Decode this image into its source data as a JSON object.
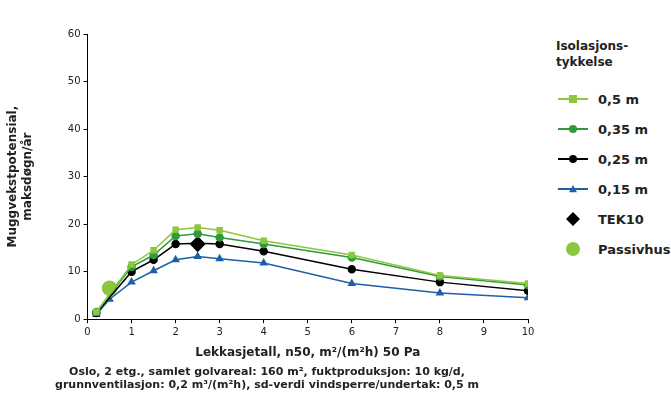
{
  "chart_data": {
    "type": "line",
    "x_label": "Lekkasjetall, n50, m²/(m²h) 50 Pa",
    "subtitle": [
      "Oslo, 2 etg., samlet golvareal: 160 m², fuktproduksjon: 10 kg/d,",
      "grunnventilasjon: 0,2 m³/(m²h), sd-verdi vindsperre/undertak: 0,5 m"
    ],
    "y_label": [
      "Muggvekstpotensial,",
      "maksdøgn/år"
    ],
    "legend_title": [
      "Isolasjons-",
      "tykkelse"
    ],
    "legend": "right",
    "grid": false,
    "xlim": [
      0,
      10
    ],
    "xticks": [
      0,
      1,
      2,
      3,
      4,
      5,
      6,
      7,
      8,
      9,
      10
    ],
    "ylim": [
      0,
      60
    ],
    "yticks": [
      0,
      10,
      20,
      30,
      40,
      50,
      60
    ],
    "series": [
      {
        "name": "0,5 m",
        "color": "#8dc63f",
        "marker": "square",
        "line_style": "solid",
        "x": [
          0.2,
          1,
          1.5,
          2,
          2.5,
          3,
          4,
          6,
          8,
          10
        ],
        "values": [
          1.5,
          11.5,
          14.5,
          18.8,
          19.3,
          18.7,
          16.5,
          13.5,
          9.2,
          7.5
        ]
      },
      {
        "name": "0,35 m",
        "color": "#2e9a3a",
        "marker": "circle",
        "line_style": "solid",
        "x": [
          0.2,
          1,
          1.5,
          2,
          2.5,
          3,
          4,
          6,
          8,
          10
        ],
        "values": [
          1.5,
          11,
          13.5,
          17.5,
          18,
          17.2,
          15.8,
          13,
          9,
          7.2
        ]
      },
      {
        "name": "0,25 m",
        "color": "#000000",
        "marker": "circle",
        "line_style": "solid",
        "x": [
          0.2,
          1,
          1.5,
          2,
          2.5,
          3,
          4,
          6,
          8,
          10
        ],
        "values": [
          1.3,
          10,
          12.5,
          15.8,
          16,
          15.8,
          14.3,
          10.5,
          7.8,
          6
        ]
      },
      {
        "name": "0,15 m",
        "color": "#1f5fa8",
        "marker": "triangle",
        "line_style": "solid",
        "x": [
          0.2,
          0.5,
          1,
          1.5,
          2,
          2.5,
          3,
          4,
          6,
          8,
          10
        ],
        "values": [
          1,
          4.2,
          7.8,
          10.2,
          12.5,
          13.2,
          12.7,
          11.8,
          7.5,
          5.5,
          4.5
        ]
      },
      {
        "name": "TEK10",
        "color": "#000000",
        "marker": "diamond",
        "type": "scatter",
        "x": [
          2.5
        ],
        "values": [
          15.8
        ]
      },
      {
        "name": "Passivhus",
        "color": "#8dc63f",
        "marker": "circle",
        "type": "scatter",
        "x": [
          0.5
        ],
        "values": [
          6.5
        ]
      }
    ]
  }
}
